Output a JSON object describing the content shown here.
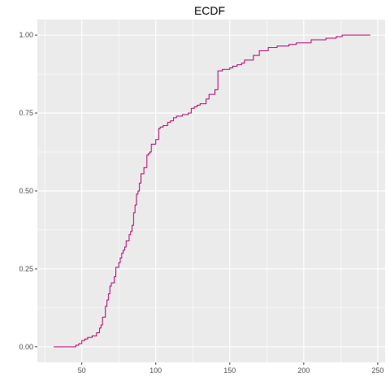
{
  "chart_data": {
    "type": "line",
    "title": "ECDF",
    "xlabel": "",
    "ylabel": "",
    "xlim": [
      20,
      255
    ],
    "ylim": [
      -0.05,
      1.05
    ],
    "x_ticks": [
      50,
      100,
      150,
      200,
      250
    ],
    "x_tick_labels": [
      "50",
      "100",
      "150",
      "200",
      "250"
    ],
    "y_ticks": [
      0,
      0.25,
      0.5,
      0.75,
      1
    ],
    "y_tick_labels": [
      "0.00",
      "0.25",
      "0.50",
      "0.75",
      "1.00"
    ],
    "grid": true,
    "legend": "none",
    "colors": {
      "line": "#b5006f",
      "panel": "#ebebeb",
      "grid": "#ffffff"
    },
    "series": [
      {
        "x": [
          31,
          46,
          48,
          50,
          52,
          54,
          57,
          60,
          62,
          63,
          64,
          66,
          67,
          68,
          69,
          70,
          72,
          73,
          75,
          76,
          77,
          78,
          79,
          80,
          82,
          83,
          84,
          85,
          86,
          87,
          88,
          89,
          90,
          92,
          94,
          95,
          96,
          97,
          100,
          102,
          103,
          105,
          108,
          110,
          112,
          114,
          118,
          122,
          124,
          126,
          128,
          130,
          134,
          136,
          140,
          142,
          145,
          150,
          152,
          155,
          158,
          160,
          166,
          170,
          176,
          182,
          190,
          195,
          205,
          215,
          222,
          226,
          245
        ],
        "y": [
          0,
          0.005,
          0.01,
          0.02,
          0.025,
          0.03,
          0.035,
          0.045,
          0.06,
          0.07,
          0.095,
          0.13,
          0.15,
          0.17,
          0.195,
          0.205,
          0.225,
          0.255,
          0.27,
          0.285,
          0.3,
          0.31,
          0.32,
          0.34,
          0.36,
          0.37,
          0.39,
          0.43,
          0.455,
          0.49,
          0.5,
          0.525,
          0.555,
          0.575,
          0.615,
          0.62,
          0.625,
          0.65,
          0.665,
          0.7,
          0.705,
          0.71,
          0.72,
          0.725,
          0.735,
          0.74,
          0.745,
          0.75,
          0.765,
          0.77,
          0.775,
          0.78,
          0.795,
          0.81,
          0.825,
          0.885,
          0.89,
          0.895,
          0.9,
          0.905,
          0.91,
          0.92,
          0.935,
          0.95,
          0.96,
          0.965,
          0.97,
          0.975,
          0.985,
          0.99,
          0.995,
          1,
          1
        ]
      }
    ]
  }
}
